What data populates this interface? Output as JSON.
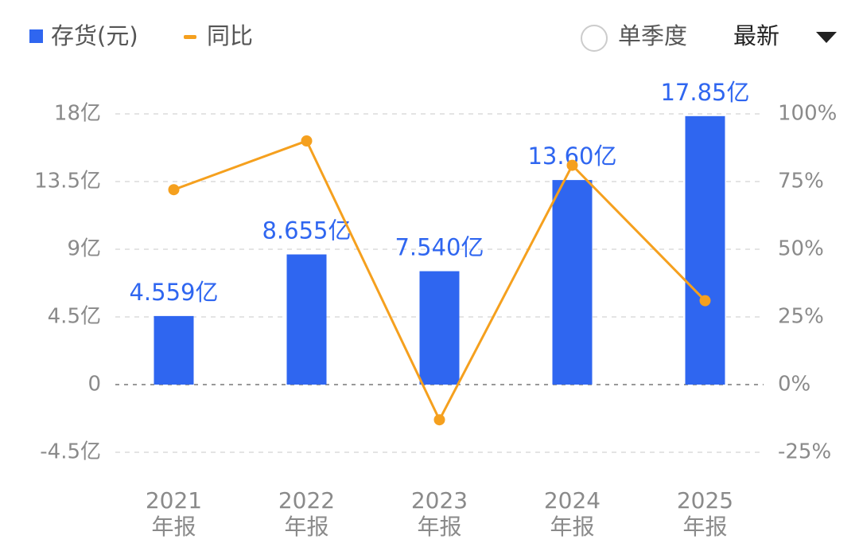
{
  "chart_data": {
    "type": "bar",
    "categories": [
      "2021\n年报",
      "2022\n年报",
      "2023\n年报",
      "2024\n年报",
      "2025\n年报"
    ],
    "series": [
      {
        "name": "存货(元)",
        "type": "bar",
        "color": "#2f66f0",
        "values": [
          4.559,
          8.655,
          7.54,
          13.6,
          17.85
        ],
        "value_labels": [
          "4.559亿",
          "8.655亿",
          "7.540亿",
          "13.60亿",
          "17.85亿"
        ]
      },
      {
        "name": "同比",
        "type": "line",
        "axis": "y2",
        "color": "#f5a01e",
        "values": [
          72,
          90,
          -13,
          81,
          31
        ]
      }
    ],
    "ylim": [
      -4.5,
      18
    ],
    "yticks": [
      {
        "value": -4.5,
        "label": "-4.5亿"
      },
      0,
      {
        "value": 4.5,
        "label": "4.5亿"
      },
      {
        "value": 9,
        "label": "9亿"
      },
      {
        "value": 13.5,
        "label": "13.5亿"
      },
      {
        "value": 18,
        "label": "18亿"
      }
    ],
    "y2lim": [
      -25,
      100
    ],
    "y2ticks": [
      {
        "value": -25,
        "label": "-25%"
      },
      {
        "value": 0,
        "label": "0%"
      },
      {
        "value": 25,
        "label": "25%"
      },
      {
        "value": 50,
        "label": "50%"
      },
      {
        "value": 75,
        "label": "75%"
      },
      {
        "value": 100,
        "label": "100%"
      }
    ],
    "grid": true
  },
  "toolbar": {
    "single_quarter": "单季度",
    "period": "最新"
  }
}
